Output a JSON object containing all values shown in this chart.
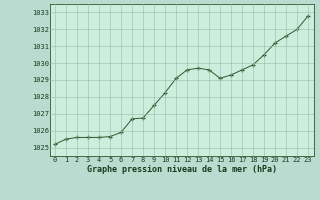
{
  "x": [
    0,
    1,
    2,
    3,
    4,
    5,
    6,
    7,
    8,
    9,
    10,
    11,
    12,
    13,
    14,
    15,
    16,
    17,
    18,
    19,
    20,
    21,
    22,
    23
  ],
  "y": [
    1025.2,
    1025.5,
    1025.6,
    1025.6,
    1025.6,
    1025.65,
    1025.9,
    1026.7,
    1026.75,
    1027.5,
    1028.25,
    1029.1,
    1029.6,
    1029.7,
    1029.6,
    1029.1,
    1029.3,
    1029.6,
    1029.9,
    1030.5,
    1031.2,
    1031.6,
    1032.0,
    1032.8
  ],
  "ylim": [
    1024.5,
    1033.5
  ],
  "yticks": [
    1025,
    1026,
    1027,
    1028,
    1029,
    1030,
    1031,
    1032,
    1033
  ],
  "xticks": [
    0,
    1,
    2,
    3,
    4,
    5,
    6,
    7,
    8,
    9,
    10,
    11,
    12,
    13,
    14,
    15,
    16,
    17,
    18,
    19,
    20,
    21,
    22,
    23
  ],
  "xlabel": "Graphe pression niveau de la mer (hPa)",
  "line_color": "#2d5a2d",
  "marker": "+",
  "bg_color": "#b8ddd0",
  "plot_bg_color": "#cceedd",
  "grid_color": "#99bbaa",
  "tick_label_color": "#1a3a1a",
  "xlabel_color": "#1a3a1a"
}
